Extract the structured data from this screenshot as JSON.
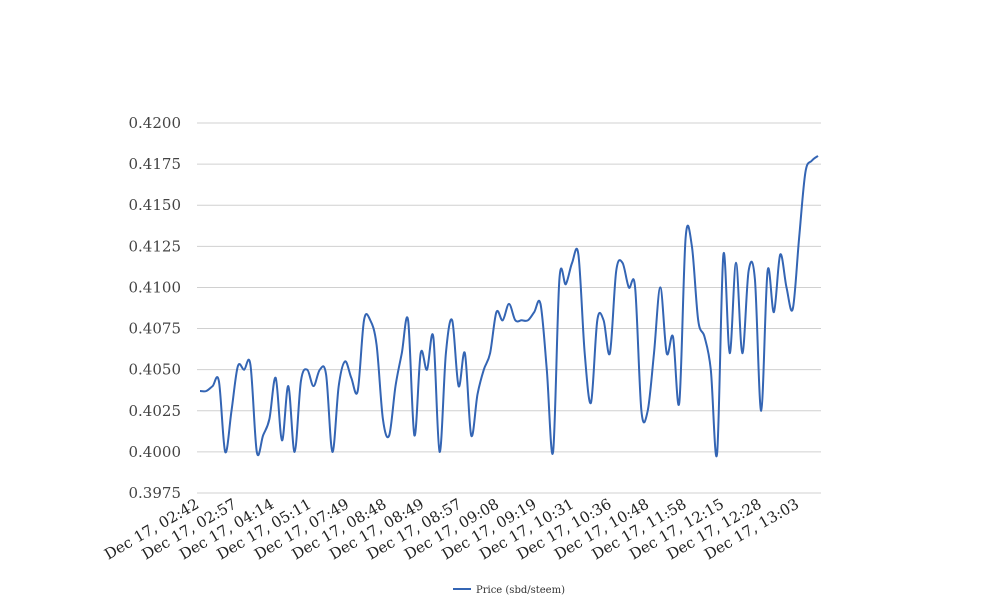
{
  "chart_data": {
    "type": "line",
    "title": "",
    "xlabel": "",
    "ylabel": "",
    "ylim": [
      0.3975,
      0.42
    ],
    "y_ticks": [
      "0.3975",
      "0.4000",
      "0.4025",
      "0.4050",
      "0.4075",
      "0.4100",
      "0.4125",
      "0.4150",
      "0.4175",
      "0.4200"
    ],
    "x_tick_labels": [
      "Dec 17, 02:42",
      "Dec 17, 02:57",
      "Dec 17, 04:14",
      "Dec 17, 05:11",
      "Dec 17, 07:49",
      "Dec 17, 08:48",
      "Dec 17, 08:49",
      "Dec 17, 08:57",
      "Dec 17, 09:08",
      "Dec 17, 09:19",
      "Dec 17, 10:31",
      "Dec 17, 10:36",
      "Dec 17, 10:48",
      "Dec 17, 11:58",
      "Dec 17, 12:15",
      "Dec 17, 12:28",
      "Dec 17, 13:03"
    ],
    "grid": true,
    "legend_position": "bottom-center",
    "color": "#3465b4",
    "series": [
      {
        "name": "Price (sbd/steem)",
        "values": [
          0.4037,
          0.4037,
          0.404,
          0.4043,
          0.4,
          0.4025,
          0.4052,
          0.405,
          0.4053,
          0.4,
          0.401,
          0.402,
          0.4045,
          0.4007,
          0.404,
          0.4,
          0.4043,
          0.405,
          0.404,
          0.405,
          0.4047,
          0.4,
          0.404,
          0.4055,
          0.4045,
          0.4037,
          0.408,
          0.408,
          0.4065,
          0.402,
          0.401,
          0.404,
          0.406,
          0.408,
          0.401,
          0.406,
          0.405,
          0.407,
          0.4,
          0.406,
          0.408,
          0.404,
          0.406,
          0.401,
          0.4035,
          0.405,
          0.406,
          0.4085,
          0.408,
          0.409,
          0.408,
          0.408,
          0.408,
          0.4085,
          0.409,
          0.405,
          0.4,
          0.4105,
          0.4102,
          0.4115,
          0.412,
          0.406,
          0.403,
          0.408,
          0.408,
          0.406,
          0.411,
          0.4115,
          0.41,
          0.41,
          0.4025,
          0.4025,
          0.406,
          0.41,
          0.406,
          0.407,
          0.403,
          0.413,
          0.4125,
          0.408,
          0.407,
          0.405,
          0.3999,
          0.412,
          0.406,
          0.4115,
          0.406,
          0.411,
          0.4105,
          0.4025,
          0.411,
          0.4085,
          0.412,
          0.41,
          0.4087,
          0.413,
          0.417,
          0.4177,
          0.418
        ]
      }
    ]
  }
}
